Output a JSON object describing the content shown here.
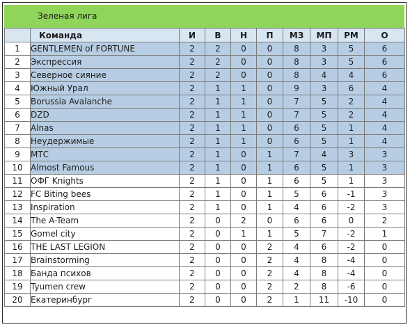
{
  "league_title": "Зеленая лига",
  "columns": [
    "",
    "Команда",
    "И",
    "В",
    "Н",
    "П",
    "МЗ",
    "МП",
    "РМ",
    "О"
  ],
  "rows": [
    {
      "pos": "1",
      "team": "GENTLEMEN of FORTUNE",
      "i": "2",
      "v": "2",
      "n": "0",
      "p": "0",
      "mz": "8",
      "mp": "3",
      "rm": "5",
      "o": "6",
      "shade": "blue"
    },
    {
      "pos": "2",
      "team": "Экспрессия",
      "i": "2",
      "v": "2",
      "n": "0",
      "p": "0",
      "mz": "8",
      "mp": "3",
      "rm": "5",
      "o": "6",
      "shade": "blue"
    },
    {
      "pos": "3",
      "team": "Северное сияние",
      "i": "2",
      "v": "2",
      "n": "0",
      "p": "0",
      "mz": "8",
      "mp": "4",
      "rm": "4",
      "o": "6",
      "shade": "blue"
    },
    {
      "pos": "4",
      "team": "Южный Урал",
      "i": "2",
      "v": "1",
      "n": "1",
      "p": "0",
      "mz": "9",
      "mp": "3",
      "rm": "6",
      "o": "4",
      "shade": "blue"
    },
    {
      "pos": "5",
      "team": "Borussia Avalanche",
      "i": "2",
      "v": "1",
      "n": "1",
      "p": "0",
      "mz": "7",
      "mp": "5",
      "rm": "2",
      "o": "4",
      "shade": "blue"
    },
    {
      "pos": "6",
      "team": "DZD",
      "i": "2",
      "v": "1",
      "n": "1",
      "p": "0",
      "mz": "7",
      "mp": "5",
      "rm": "2",
      "o": "4",
      "shade": "blue"
    },
    {
      "pos": "7",
      "team": "Alnas",
      "i": "2",
      "v": "1",
      "n": "1",
      "p": "0",
      "mz": "6",
      "mp": "5",
      "rm": "1",
      "o": "4",
      "shade": "blue"
    },
    {
      "pos": "8",
      "team": "Неудержимые",
      "i": "2",
      "v": "1",
      "n": "1",
      "p": "0",
      "mz": "6",
      "mp": "5",
      "rm": "1",
      "o": "4",
      "shade": "blue"
    },
    {
      "pos": "9",
      "team": "МТС",
      "i": "2",
      "v": "1",
      "n": "0",
      "p": "1",
      "mz": "7",
      "mp": "4",
      "rm": "3",
      "o": "3",
      "shade": "blue"
    },
    {
      "pos": "10",
      "team": "Almost Famous",
      "i": "2",
      "v": "1",
      "n": "0",
      "p": "1",
      "mz": "6",
      "mp": "5",
      "rm": "1",
      "o": "3",
      "shade": "blue"
    },
    {
      "pos": "11",
      "team": "ОФГ Knights",
      "i": "2",
      "v": "1",
      "n": "0",
      "p": "1",
      "mz": "6",
      "mp": "5",
      "rm": "1",
      "o": "3",
      "shade": "white"
    },
    {
      "pos": "12",
      "team": "FC Biting bees",
      "i": "2",
      "v": "1",
      "n": "0",
      "p": "1",
      "mz": "5",
      "mp": "6",
      "rm": "-1",
      "o": "3",
      "shade": "white"
    },
    {
      "pos": "13",
      "team": "Inspiration",
      "i": "2",
      "v": "1",
      "n": "0",
      "p": "1",
      "mz": "4",
      "mp": "6",
      "rm": "-2",
      "o": "3",
      "shade": "white"
    },
    {
      "pos": "14",
      "team": "The A-Team",
      "i": "2",
      "v": "0",
      "n": "2",
      "p": "0",
      "mz": "6",
      "mp": "6",
      "rm": "0",
      "o": "2",
      "shade": "white"
    },
    {
      "pos": "15",
      "team": "Gomel city",
      "i": "2",
      "v": "0",
      "n": "1",
      "p": "1",
      "mz": "5",
      "mp": "7",
      "rm": "-2",
      "o": "1",
      "shade": "white"
    },
    {
      "pos": "16",
      "team": "THE LAST LEGION",
      "i": "2",
      "v": "0",
      "n": "0",
      "p": "2",
      "mz": "4",
      "mp": "6",
      "rm": "-2",
      "o": "0",
      "shade": "white"
    },
    {
      "pos": "17",
      "team": "Brainstorming",
      "i": "2",
      "v": "0",
      "n": "0",
      "p": "2",
      "mz": "4",
      "mp": "8",
      "rm": "-4",
      "o": "0",
      "shade": "white"
    },
    {
      "pos": "18",
      "team": "Банда психов",
      "i": "2",
      "v": "0",
      "n": "0",
      "p": "2",
      "mz": "4",
      "mp": "8",
      "rm": "-4",
      "o": "0",
      "shade": "white"
    },
    {
      "pos": "19",
      "team": "Tyumen crew",
      "i": "2",
      "v": "0",
      "n": "0",
      "p": "2",
      "mz": "2",
      "mp": "8",
      "rm": "-6",
      "o": "0",
      "shade": "white"
    },
    {
      "pos": "20",
      "team": "Екатеринбург",
      "i": "2",
      "v": "0",
      "n": "0",
      "p": "2",
      "mz": "1",
      "mp": "11",
      "rm": "-10",
      "o": "0",
      "shade": "white"
    }
  ],
  "colors": {
    "header_green": "#8fd55a",
    "top_rows_blue": "#b7cde3",
    "column_header": "#d8e6f2"
  }
}
